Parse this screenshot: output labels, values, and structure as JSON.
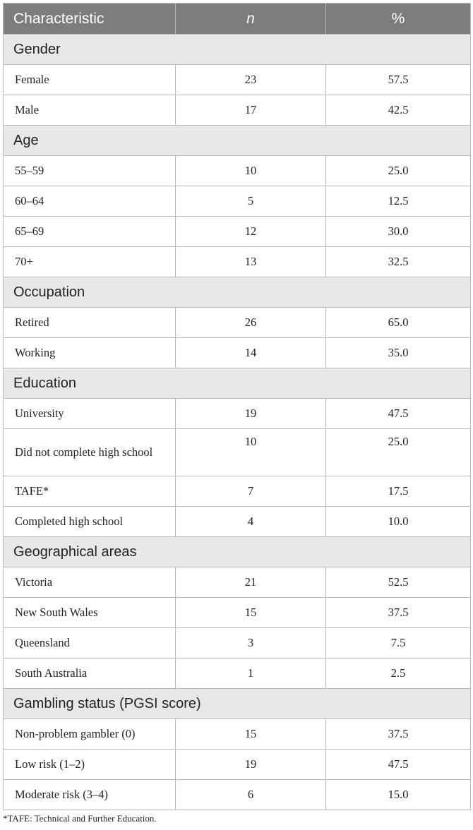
{
  "header": {
    "characteristic": "Characteristic",
    "n": "n",
    "percent": "%"
  },
  "sections": [
    {
      "title": "Gender",
      "rows": [
        {
          "label": "Female",
          "n": "23",
          "pct": "57.5"
        },
        {
          "label": "Male",
          "n": "17",
          "pct": "42.5"
        }
      ]
    },
    {
      "title": "Age",
      "rows": [
        {
          "label": "55–59",
          "n": "10",
          "pct": "25.0"
        },
        {
          "label": "60–64",
          "n": "5",
          "pct": "12.5"
        },
        {
          "label": "65–69",
          "n": "12",
          "pct": "30.0"
        },
        {
          "label": "70+",
          "n": "13",
          "pct": "32.5"
        }
      ]
    },
    {
      "title": "Occupation",
      "rows": [
        {
          "label": "Retired",
          "n": "26",
          "pct": "65.0"
        },
        {
          "label": "Working",
          "n": "14",
          "pct": "35.0"
        }
      ]
    },
    {
      "title": "Education",
      "rows": [
        {
          "label": "University",
          "n": "19",
          "pct": "47.5"
        },
        {
          "label": "Did not complete high school",
          "n": "10",
          "pct": "25.0"
        },
        {
          "label": "TAFE*",
          "n": "7",
          "pct": "17.5"
        },
        {
          "label": "Completed high school",
          "n": "4",
          "pct": "10.0"
        }
      ]
    },
    {
      "title": "Geographical areas",
      "rows": [
        {
          "label": "Victoria",
          "n": "21",
          "pct": "52.5"
        },
        {
          "label": "New South Wales",
          "n": "15",
          "pct": "37.5"
        },
        {
          "label": "Queensland",
          "n": "3",
          "pct": "7.5"
        },
        {
          "label": "South Australia",
          "n": "1",
          "pct": "2.5"
        }
      ]
    },
    {
      "title": "Gambling status (PGSI score)",
      "rows": [
        {
          "label": "Non-problem gambler (0)",
          "n": "15",
          "pct": "37.5"
        },
        {
          "label": "Low risk (1–2)",
          "n": "19",
          "pct": "47.5"
        },
        {
          "label": "Moderate risk (3–4)",
          "n": "6",
          "pct": "15.0"
        }
      ]
    }
  ],
  "footnote": "*TAFE: Technical and Further Education."
}
